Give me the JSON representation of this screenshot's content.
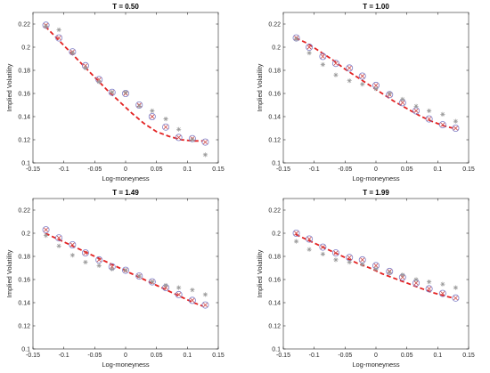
{
  "colors": {
    "fit_line": "#e32222",
    "circle": "#8080c8",
    "cross": "#d04848",
    "star": "#999999",
    "axis": "#262626"
  },
  "chart_data": [
    {
      "type": "scatter",
      "title": "T = 0.50",
      "xlabel": "Log-moneyness",
      "ylabel": "Implied Volatility",
      "xlim": [
        -0.15,
        0.15
      ],
      "ylim": [
        0.1,
        0.23
      ],
      "xticks": [
        "-0.15",
        "-0.1",
        "-0.05",
        "0",
        "0.05",
        "0.1",
        "0.15"
      ],
      "yticks": [
        "0.1",
        "0.12",
        "0.14",
        "0.16",
        "0.18",
        "0.2",
        "0.22"
      ],
      "series": [
        {
          "marker": "dashed-line",
          "x": [
            -0.13,
            -0.11,
            -0.09,
            -0.07,
            -0.05,
            -0.03,
            -0.01,
            0.01,
            0.03,
            0.05,
            0.07,
            0.09,
            0.11,
            0.125
          ],
          "y": [
            0.218,
            0.207,
            0.196,
            0.185,
            0.174,
            0.163,
            0.153,
            0.143,
            0.134,
            0.127,
            0.123,
            0.12,
            0.119,
            0.119
          ]
        },
        {
          "marker": "circle",
          "x": [
            -0.129,
            -0.108,
            -0.086,
            -0.065,
            -0.043,
            -0.022,
            0.0,
            0.022,
            0.043,
            0.065,
            0.086,
            0.108,
            0.129
          ],
          "y": [
            0.219,
            0.208,
            0.196,
            0.184,
            0.172,
            0.161,
            0.16,
            0.15,
            0.14,
            0.131,
            0.122,
            0.121,
            0.118
          ]
        },
        {
          "marker": "cross",
          "x": [
            -0.129,
            -0.108,
            -0.086,
            -0.065,
            -0.043,
            -0.022,
            0.0,
            0.022,
            0.043,
            0.065,
            0.086,
            0.108,
            0.129
          ],
          "y": [
            0.219,
            0.208,
            0.196,
            0.184,
            0.172,
            0.161,
            0.16,
            0.15,
            0.14,
            0.131,
            0.122,
            0.121,
            0.118
          ]
        },
        {
          "marker": "star",
          "x": [
            -0.129,
            -0.108,
            -0.086,
            -0.065,
            -0.043,
            -0.022,
            0.0,
            0.022,
            0.043,
            0.065,
            0.086,
            0.108,
            0.129
          ],
          "y": [
            0.218,
            0.215,
            0.195,
            0.182,
            0.17,
            0.161,
            0.161,
            0.149,
            0.145,
            0.138,
            0.129,
            0.12,
            0.107
          ]
        }
      ]
    },
    {
      "type": "scatter",
      "title": "T = 1.00",
      "xlabel": "Log-moneyness",
      "ylabel": "Implied Volatility",
      "xlim": [
        -0.15,
        0.15
      ],
      "ylim": [
        0.1,
        0.23
      ],
      "xticks": [
        "-0.15",
        "-0.1",
        "-0.05",
        "0",
        "0.05",
        "0.1",
        "0.15"
      ],
      "yticks": [
        "0.1",
        "0.12",
        "0.14",
        "0.16",
        "0.18",
        "0.2",
        "0.22"
      ],
      "series": [
        {
          "marker": "dashed-line",
          "x": [
            -0.13,
            -0.11,
            -0.09,
            -0.07,
            -0.05,
            -0.03,
            -0.01,
            0.01,
            0.03,
            0.05,
            0.07,
            0.09,
            0.11,
            0.125
          ],
          "y": [
            0.208,
            0.203,
            0.196,
            0.189,
            0.181,
            0.174,
            0.167,
            0.16,
            0.153,
            0.147,
            0.141,
            0.136,
            0.132,
            0.13
          ]
        },
        {
          "marker": "circle",
          "x": [
            -0.129,
            -0.108,
            -0.086,
            -0.065,
            -0.043,
            -0.022,
            0.0,
            0.022,
            0.043,
            0.065,
            0.086,
            0.108,
            0.129
          ],
          "y": [
            0.208,
            0.2,
            0.192,
            0.186,
            0.182,
            0.175,
            0.167,
            0.159,
            0.152,
            0.145,
            0.138,
            0.133,
            0.13
          ]
        },
        {
          "marker": "cross",
          "x": [
            -0.129,
            -0.108,
            -0.086,
            -0.065,
            -0.043,
            -0.022,
            0.0,
            0.022,
            0.043,
            0.065,
            0.086,
            0.108,
            0.129
          ],
          "y": [
            0.208,
            0.2,
            0.192,
            0.186,
            0.182,
            0.175,
            0.167,
            0.159,
            0.152,
            0.145,
            0.138,
            0.133,
            0.13
          ]
        },
        {
          "marker": "star",
          "x": [
            -0.129,
            -0.108,
            -0.086,
            -0.065,
            -0.043,
            -0.022,
            0.0,
            0.022,
            0.043,
            0.065,
            0.086,
            0.108,
            0.129
          ],
          "y": [
            0.207,
            0.195,
            0.185,
            0.176,
            0.171,
            0.168,
            0.164,
            0.16,
            0.155,
            0.149,
            0.145,
            0.142,
            0.136
          ]
        }
      ]
    },
    {
      "type": "scatter",
      "title": "T = 1.49",
      "xlabel": "Log-moneyness",
      "ylabel": "Implied Volatility",
      "xlim": [
        -0.15,
        0.15
      ],
      "ylim": [
        0.1,
        0.23
      ],
      "xticks": [
        "-0.15",
        "-0.1",
        "-0.05",
        "0",
        "0.05",
        "0.1",
        "0.15"
      ],
      "yticks": [
        "0.1",
        "0.12",
        "0.14",
        "0.16",
        "0.18",
        "0.2",
        "0.22"
      ],
      "series": [
        {
          "marker": "dashed-line",
          "x": [
            -0.13,
            -0.11,
            -0.09,
            -0.07,
            -0.05,
            -0.03,
            -0.01,
            0.01,
            0.03,
            0.05,
            0.07,
            0.09,
            0.11,
            0.125
          ],
          "y": [
            0.2,
            0.195,
            0.19,
            0.185,
            0.18,
            0.175,
            0.17,
            0.165,
            0.16,
            0.155,
            0.15,
            0.145,
            0.14,
            0.137
          ]
        },
        {
          "marker": "circle",
          "x": [
            -0.129,
            -0.108,
            -0.086,
            -0.065,
            -0.043,
            -0.022,
            0.0,
            0.022,
            0.043,
            0.065,
            0.086,
            0.108,
            0.129
          ],
          "y": [
            0.203,
            0.196,
            0.19,
            0.183,
            0.177,
            0.171,
            0.168,
            0.163,
            0.158,
            0.153,
            0.147,
            0.142,
            0.138
          ]
        },
        {
          "marker": "cross",
          "x": [
            -0.129,
            -0.108,
            -0.086,
            -0.065,
            -0.043,
            -0.022,
            0.0,
            0.022,
            0.043,
            0.065,
            0.086,
            0.108,
            0.129
          ],
          "y": [
            0.203,
            0.196,
            0.19,
            0.183,
            0.177,
            0.171,
            0.168,
            0.163,
            0.158,
            0.153,
            0.147,
            0.142,
            0.138
          ]
        },
        {
          "marker": "star",
          "x": [
            -0.129,
            -0.108,
            -0.086,
            -0.065,
            -0.043,
            -0.022,
            0.0,
            0.022,
            0.043,
            0.065,
            0.086,
            0.108,
            0.129
          ],
          "y": [
            0.198,
            0.189,
            0.181,
            0.175,
            0.172,
            0.169,
            0.168,
            0.163,
            0.158,
            0.155,
            0.153,
            0.151,
            0.147
          ]
        }
      ]
    },
    {
      "type": "scatter",
      "title": "T = 1.99",
      "xlabel": "Log-moneyness",
      "ylabel": "Implied Volatility",
      "xlim": [
        -0.15,
        0.15
      ],
      "ylim": [
        0.1,
        0.23
      ],
      "xticks": [
        "-0.15",
        "-0.1",
        "-0.05",
        "0",
        "0.05",
        "0.1",
        "0.15"
      ],
      "yticks": [
        "0.1",
        "0.12",
        "0.14",
        "0.16",
        "0.18",
        "0.2",
        "0.22"
      ],
      "series": [
        {
          "marker": "dashed-line",
          "x": [
            -0.13,
            -0.11,
            -0.09,
            -0.07,
            -0.05,
            -0.03,
            -0.01,
            0.01,
            0.03,
            0.05,
            0.07,
            0.09,
            0.11,
            0.125
          ],
          "y": [
            0.199,
            0.194,
            0.189,
            0.184,
            0.179,
            0.174,
            0.17,
            0.165,
            0.161,
            0.157,
            0.153,
            0.149,
            0.146,
            0.144
          ]
        },
        {
          "marker": "circle",
          "x": [
            -0.129,
            -0.108,
            -0.086,
            -0.065,
            -0.043,
            -0.022,
            0.0,
            0.022,
            0.043,
            0.065,
            0.086,
            0.108,
            0.129
          ],
          "y": [
            0.2,
            0.195,
            0.188,
            0.183,
            0.179,
            0.177,
            0.172,
            0.167,
            0.162,
            0.157,
            0.152,
            0.148,
            0.144
          ]
        },
        {
          "marker": "cross",
          "x": [
            -0.129,
            -0.108,
            -0.086,
            -0.065,
            -0.043,
            -0.022,
            0.0,
            0.022,
            0.043,
            0.065,
            0.086,
            0.108,
            0.129
          ],
          "y": [
            0.2,
            0.195,
            0.188,
            0.183,
            0.179,
            0.177,
            0.172,
            0.167,
            0.162,
            0.157,
            0.152,
            0.148,
            0.144
          ]
        },
        {
          "marker": "star",
          "x": [
            -0.129,
            -0.108,
            -0.086,
            -0.065,
            -0.043,
            -0.022,
            0.0,
            0.022,
            0.043,
            0.065,
            0.086,
            0.108,
            0.129
          ],
          "y": [
            0.193,
            0.186,
            0.182,
            0.177,
            0.175,
            0.173,
            0.169,
            0.166,
            0.164,
            0.16,
            0.158,
            0.156,
            0.153
          ]
        }
      ]
    }
  ]
}
